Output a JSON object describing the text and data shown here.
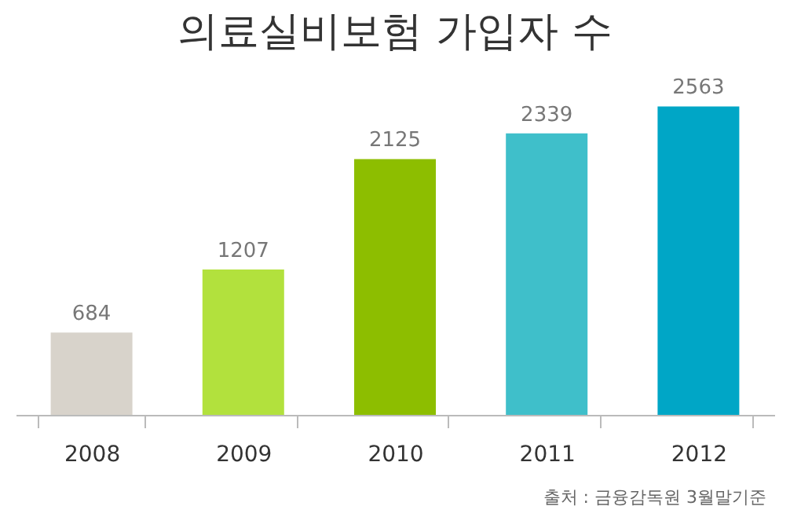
{
  "chart_data": {
    "type": "bar",
    "title": "의료실비보험 가입자 수",
    "categories": [
      "2008",
      "2009",
      "2010",
      "2011",
      "2012"
    ],
    "values": [
      684,
      1207,
      2125,
      2339,
      2563
    ],
    "colors": [
      "#d8d3cb",
      "#b2e13d",
      "#8dbe00",
      "#3fbfca",
      "#00a6c6"
    ],
    "data_labels": true,
    "grid": false,
    "annotations": [
      "출처 : 금융감독원 3월말기준"
    ]
  }
}
